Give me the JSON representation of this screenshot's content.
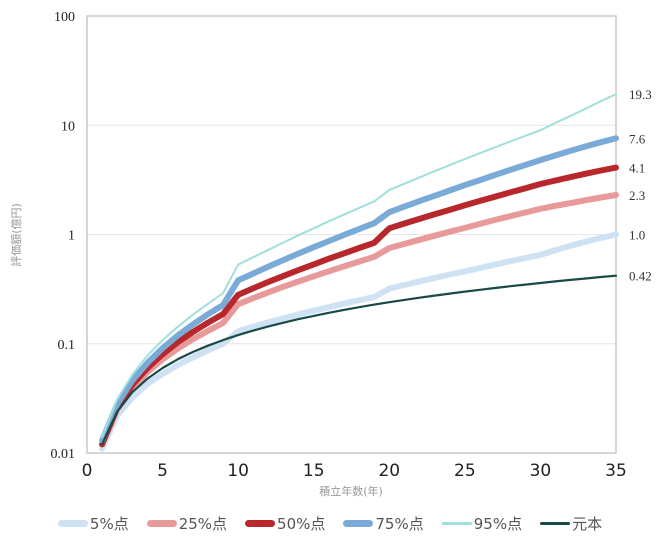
{
  "chart_data": {
    "type": "line",
    "title": "",
    "xlabel": "積立年数(年)",
    "ylabel": "評価額(億円)",
    "xlim": [
      0,
      35
    ],
    "ylim": [
      0.01,
      100
    ],
    "yscale": "log",
    "grid": true,
    "legend_position": "bottom",
    "x_ticks": [
      "0",
      "5",
      "10",
      "15",
      "20",
      "25",
      "30",
      "35"
    ],
    "y_ticks": [
      "0.01",
      "0.1",
      "1",
      "10",
      "100"
    ],
    "x": [
      1,
      2,
      3,
      4,
      5,
      6,
      7,
      8,
      9,
      10,
      11,
      12,
      13,
      14,
      15,
      16,
      17,
      18,
      19,
      20,
      21,
      22,
      23,
      24,
      25,
      26,
      27,
      28,
      29,
      30,
      31,
      32,
      33,
      34,
      35
    ],
    "series": [
      {
        "name": "5%点",
        "color": "#cfe2f3",
        "end_label": "1.0",
        "values": [
          0.011,
          0.022,
          0.032,
          0.043,
          0.053,
          0.064,
          0.075,
          0.087,
          0.1,
          0.13,
          0.143,
          0.157,
          0.171,
          0.186,
          0.201,
          0.216,
          0.233,
          0.25,
          0.268,
          0.32,
          0.345,
          0.372,
          0.4,
          0.43,
          0.46,
          0.495,
          0.53,
          0.57,
          0.61,
          0.65,
          0.72,
          0.79,
          0.86,
          0.93,
          1.0
        ]
      },
      {
        "name": "25%点",
        "color": "#e8999a",
        "end_label": "2.3",
        "values": [
          0.012,
          0.025,
          0.039,
          0.055,
          0.072,
          0.09,
          0.11,
          0.131,
          0.155,
          0.23,
          0.262,
          0.296,
          0.333,
          0.372,
          0.414,
          0.46,
          0.51,
          0.565,
          0.625,
          0.75,
          0.82,
          0.895,
          0.975,
          1.06,
          1.15,
          1.25,
          1.36,
          1.47,
          1.59,
          1.72,
          1.83,
          1.94,
          2.06,
          2.18,
          2.3
        ]
      },
      {
        "name": "50%点",
        "color": "#b8272c",
        "end_label": "4.1",
        "values": [
          0.012,
          0.026,
          0.042,
          0.06,
          0.08,
          0.103,
          0.128,
          0.156,
          0.187,
          0.28,
          0.322,
          0.368,
          0.418,
          0.473,
          0.533,
          0.6,
          0.672,
          0.752,
          0.84,
          1.14,
          1.26,
          1.39,
          1.53,
          1.68,
          1.85,
          2.03,
          2.22,
          2.43,
          2.65,
          2.9,
          3.12,
          3.35,
          3.6,
          3.85,
          4.1
        ]
      },
      {
        "name": "75%点",
        "color": "#7aaad8",
        "end_label": "7.6",
        "values": [
          0.013,
          0.028,
          0.046,
          0.067,
          0.091,
          0.119,
          0.15,
          0.186,
          0.226,
          0.38,
          0.44,
          0.508,
          0.584,
          0.67,
          0.765,
          0.87,
          0.99,
          1.12,
          1.27,
          1.6,
          1.8,
          2.02,
          2.26,
          2.53,
          2.83,
          3.15,
          3.51,
          3.9,
          4.33,
          4.8,
          5.3,
          5.85,
          6.4,
          7.0,
          7.6
        ]
      },
      {
        "name": "95%点",
        "color": "#9fe0dc",
        "end_label": "19.3",
        "values": [
          0.014,
          0.031,
          0.052,
          0.078,
          0.108,
          0.143,
          0.184,
          0.232,
          0.29,
          0.53,
          0.62,
          0.725,
          0.845,
          0.985,
          1.14,
          1.32,
          1.52,
          1.75,
          2.01,
          2.55,
          2.92,
          3.33,
          3.8,
          4.32,
          4.9,
          5.55,
          6.28,
          7.1,
          8.0,
          9.0,
          10.5,
          12.2,
          14.2,
          16.6,
          19.3
        ]
      },
      {
        "name": "元本",
        "color": "#1a4a45",
        "end_label": "0.42",
        "values": [
          0.012,
          0.024,
          0.036,
          0.048,
          0.06,
          0.072,
          0.084,
          0.096,
          0.108,
          0.12,
          0.132,
          0.144,
          0.156,
          0.168,
          0.18,
          0.192,
          0.204,
          0.216,
          0.228,
          0.24,
          0.252,
          0.264,
          0.276,
          0.288,
          0.3,
          0.312,
          0.324,
          0.336,
          0.348,
          0.36,
          0.372,
          0.384,
          0.396,
          0.408,
          0.42
        ]
      }
    ]
  }
}
